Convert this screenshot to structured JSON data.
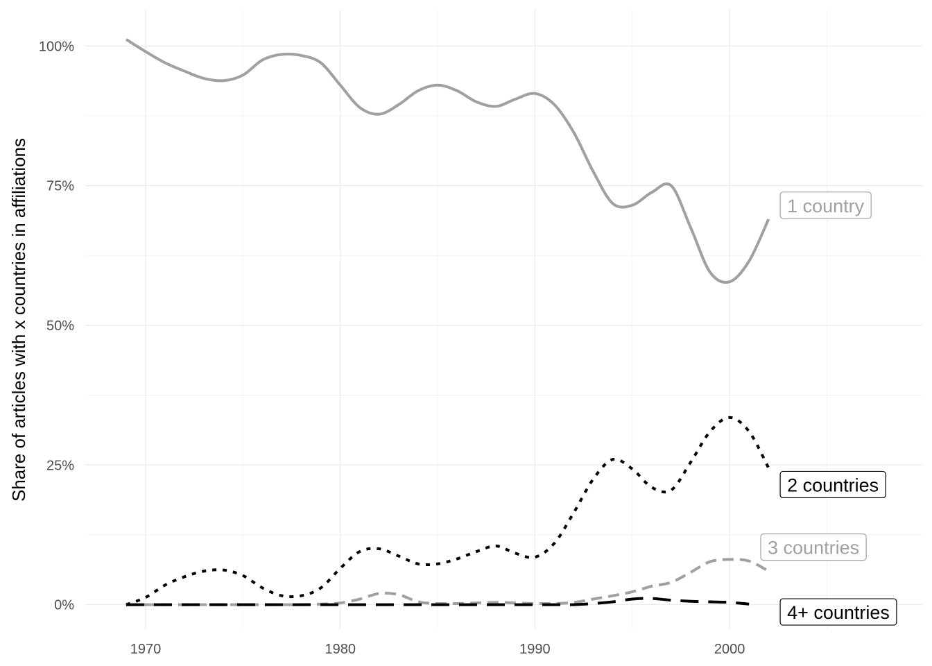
{
  "chart_data": {
    "type": "line",
    "title": "",
    "xlabel": "",
    "ylabel": "Share of articles with x countries in affiliations",
    "xlim": [
      1966.9,
      2009.9
    ],
    "ylim": [
      -4.4,
      106.5
    ],
    "x_ticks": [
      1970,
      1980,
      1990,
      2000
    ],
    "x_tick_labels": [
      "1970",
      "1980",
      "1990",
      "2000"
    ],
    "y_ticks": [
      0,
      25,
      50,
      75,
      100
    ],
    "y_tick_labels": [
      "0%",
      "25%",
      "50%",
      "75%",
      "100%"
    ],
    "grid": true,
    "legend": "direct labels at line ends",
    "series": [
      {
        "name": "1 country",
        "color": "#a0a0a0",
        "dash": "solid",
        "label_anchor": [
          2002.6,
          71.5
        ],
        "x": [
          1969,
          1970,
          1971,
          1972,
          1973,
          1974,
          1975,
          1976,
          1977,
          1978,
          1979,
          1980,
          1981,
          1982,
          1983,
          1984,
          1985,
          1986,
          1987,
          1988,
          1989,
          1990,
          1991,
          1992,
          1993,
          1994,
          1995,
          1996,
          1997,
          1998,
          1999,
          2000,
          2001,
          2002
        ],
        "y": [
          101.2,
          99.0,
          97.0,
          95.5,
          94.2,
          93.8,
          94.8,
          97.5,
          98.5,
          98.3,
          97.0,
          93.0,
          89.0,
          87.8,
          89.5,
          92.0,
          93.0,
          92.0,
          90.0,
          89.2,
          90.5,
          91.5,
          89.5,
          84.5,
          77.5,
          71.8,
          71.5,
          73.8,
          75.0,
          67.5,
          59.5,
          57.8,
          61.5,
          69.0
        ]
      },
      {
        "name": "2 countries",
        "color": "#000000",
        "dash": "dotted",
        "label_anchor": [
          2002.6,
          21.5
        ],
        "x": [
          1969,
          1970,
          1971,
          1972,
          1973,
          1974,
          1975,
          1976,
          1977,
          1978,
          1979,
          1980,
          1981,
          1982,
          1983,
          1984,
          1985,
          1986,
          1987,
          1988,
          1989,
          1990,
          1991,
          1992,
          1993,
          1994,
          1995,
          1996,
          1997,
          1998,
          1999,
          2000,
          2001,
          2002
        ],
        "y": [
          0.0,
          1.3,
          3.5,
          5.0,
          6.0,
          6.2,
          5.2,
          3.0,
          1.6,
          1.6,
          3.0,
          6.5,
          9.5,
          10.0,
          8.7,
          7.3,
          7.3,
          8.2,
          9.5,
          10.5,
          9.2,
          8.5,
          11.0,
          16.5,
          22.5,
          26.0,
          24.3,
          21.0,
          20.5,
          25.5,
          31.0,
          33.5,
          31.0,
          24.5
        ]
      },
      {
        "name": "3 countries",
        "color": "#a0a0a0",
        "dash": "dashed",
        "label_anchor": [
          2001.6,
          10.3
        ],
        "x": [
          1969,
          1970,
          1971,
          1972,
          1973,
          1974,
          1975,
          1976,
          1977,
          1978,
          1979,
          1980,
          1981,
          1982,
          1983,
          1984,
          1985,
          1986,
          1987,
          1988,
          1989,
          1990,
          1991,
          1992,
          1993,
          1994,
          1995,
          1996,
          1997,
          1998,
          1999,
          2000,
          2001,
          2002
        ],
        "y": [
          0.0,
          0.0,
          0.0,
          0.0,
          0.0,
          0.0,
          0.0,
          0.0,
          0.0,
          0.0,
          0.1,
          0.3,
          1.0,
          2.0,
          1.8,
          0.5,
          0.2,
          0.2,
          0.3,
          0.4,
          0.3,
          0.2,
          0.2,
          0.4,
          1.0,
          1.6,
          2.3,
          3.3,
          4.0,
          5.8,
          7.7,
          8.1,
          7.8,
          6.0
        ]
      },
      {
        "name": "4+ countries",
        "color": "#000000",
        "dash": "longdash",
        "label_anchor": [
          2002.6,
          -1.3
        ],
        "x": [
          1969,
          1970,
          1971,
          1972,
          1973,
          1974,
          1975,
          1976,
          1977,
          1978,
          1979,
          1980,
          1981,
          1982,
          1983,
          1984,
          1985,
          1986,
          1987,
          1988,
          1989,
          1990,
          1991,
          1992,
          1993,
          1994,
          1995,
          1996,
          1997,
          1998,
          1999,
          2000,
          2001
        ],
        "y": [
          0.0,
          0.0,
          0.0,
          0.0,
          0.0,
          0.0,
          0.0,
          0.0,
          0.0,
          0.0,
          0.0,
          0.0,
          0.0,
          0.0,
          0.0,
          0.0,
          0.0,
          0.0,
          0.0,
          0.0,
          0.0,
          0.0,
          0.0,
          0.0,
          0.2,
          0.5,
          1.0,
          1.1,
          0.8,
          0.6,
          0.5,
          0.4,
          0.1
        ]
      }
    ]
  }
}
